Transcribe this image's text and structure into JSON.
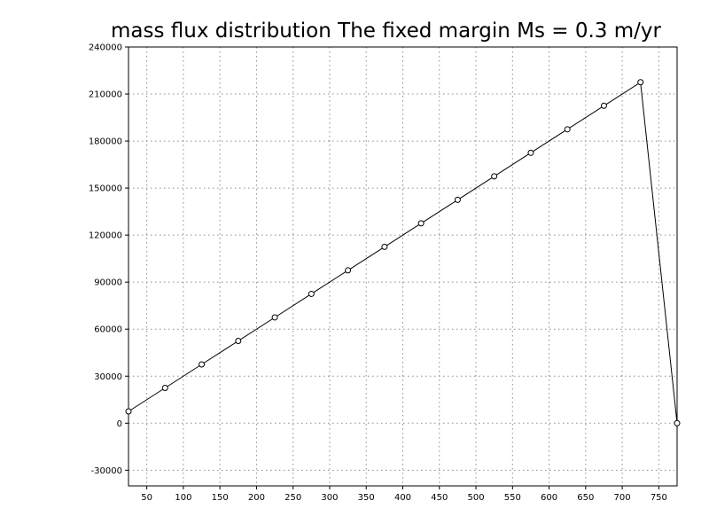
{
  "chart_data": {
    "type": "line",
    "title": "mass flux distribution The fixed margin Ms = 0.3 m/yr",
    "xlabel": "",
    "ylabel": "",
    "xlim": [
      25,
      775
    ],
    "ylim": [
      -40000,
      240000
    ],
    "x_ticks": [
      50,
      100,
      150,
      200,
      250,
      300,
      350,
      400,
      450,
      500,
      550,
      600,
      650,
      700,
      750
    ],
    "y_ticks": [
      -30000,
      0,
      30000,
      60000,
      90000,
      120000,
      150000,
      180000,
      210000,
      240000
    ],
    "grid": true,
    "legend": "none",
    "colors": {
      "line": "#000000",
      "marker_fill": "#ffffff",
      "grid": "#8c8c8c",
      "background": "#ffffff"
    },
    "series": [
      {
        "marker": "open-circle",
        "x": [
          25,
          75,
          125,
          175,
          225,
          275,
          325,
          375,
          425,
          475,
          525,
          575,
          625,
          675,
          725,
          775
        ],
        "y": [
          7500,
          22500,
          37500,
          52500,
          67500,
          82500,
          97500,
          112500,
          127500,
          142500,
          157500,
          172500,
          187500,
          202500,
          217500,
          0
        ]
      }
    ]
  }
}
